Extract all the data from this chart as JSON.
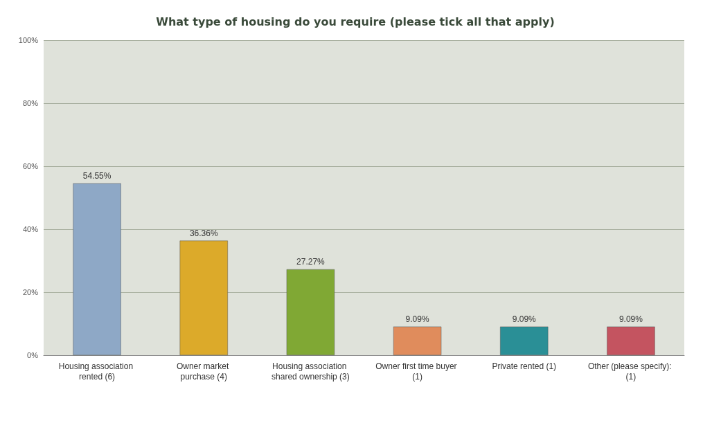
{
  "chart_data": {
    "type": "bar",
    "title": "What type of housing do you require (please tick all that apply)",
    "categories": [
      "Housing association rented (6)",
      "Owner market purchase (4)",
      "Housing association shared ownership (3)",
      "Owner first time buyer (1)",
      "Private rented (1)",
      "Other (please specify): (1)"
    ],
    "values": [
      54.55,
      36.36,
      27.27,
      9.09,
      9.09,
      9.09
    ],
    "colors": [
      "#8ea8c6",
      "#dcaa2a",
      "#80a834",
      "#e08c5c",
      "#2a8f96",
      "#c45460"
    ],
    "value_labels": [
      "54.55%",
      "36.36%",
      "27.27%",
      "9.09%",
      "9.09%",
      "9.09%"
    ],
    "ylim": [
      0,
      100
    ],
    "yticks": [
      {
        "value": 0,
        "label": "0%"
      },
      {
        "value": 20,
        "label": "20%"
      },
      {
        "value": 40,
        "label": "40%"
      },
      {
        "value": 60,
        "label": "60%"
      },
      {
        "value": 80,
        "label": "80%"
      },
      {
        "value": 100,
        "label": "100%"
      }
    ],
    "grid": "y"
  }
}
